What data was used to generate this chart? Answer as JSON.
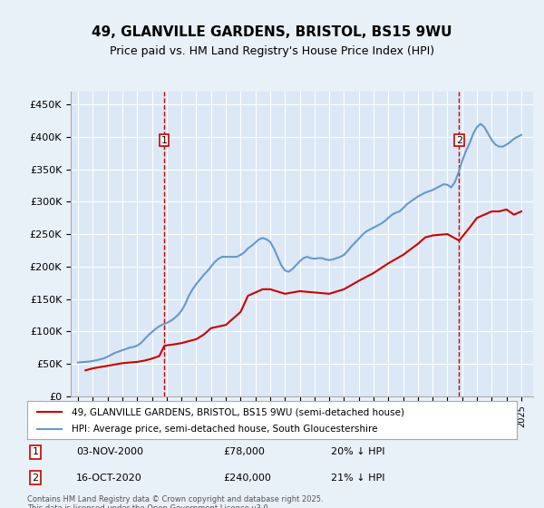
{
  "title": "49, GLANVILLE GARDENS, BRISTOL, BS15 9WU",
  "subtitle": "Price paid vs. HM Land Registry's House Price Index (HPI)",
  "background_color": "#e8f0f8",
  "plot_bg_color": "#dce8f5",
  "legend_label_red": "49, GLANVILLE GARDENS, BRISTOL, BS15 9WU (semi-detached house)",
  "legend_label_blue": "HPI: Average price, semi-detached house, South Gloucestershire",
  "footer": "Contains HM Land Registry data © Crown copyright and database right 2025.\nThis data is licensed under the Open Government Licence v3.0.",
  "annotation1": {
    "label": "1",
    "date_str": "03-NOV-2000",
    "price_str": "£78,000",
    "note": "20% ↓ HPI",
    "x_year": 2000.84
  },
  "annotation2": {
    "label": "2",
    "date_str": "16-OCT-2020",
    "price_str": "£240,000",
    "note": "21% ↓ HPI",
    "x_year": 2020.79
  },
  "ylim": [
    0,
    470000
  ],
  "xlim_left": 1994.5,
  "xlim_right": 2025.8,
  "yticks": [
    0,
    50000,
    100000,
    150000,
    200000,
    250000,
    300000,
    350000,
    400000,
    450000
  ],
  "xticks": [
    1995,
    1996,
    1997,
    1998,
    1999,
    2000,
    2001,
    2002,
    2003,
    2004,
    2005,
    2006,
    2007,
    2008,
    2009,
    2010,
    2011,
    2012,
    2013,
    2014,
    2015,
    2016,
    2017,
    2018,
    2019,
    2020,
    2021,
    2022,
    2023,
    2024,
    2025
  ],
  "red_color": "#cc0000",
  "blue_color": "#6699cc",
  "dashed_color": "#cc0000",
  "hpi_data": {
    "years": [
      1995.0,
      1995.25,
      1995.5,
      1995.75,
      1996.0,
      1996.25,
      1996.5,
      1996.75,
      1997.0,
      1997.25,
      1997.5,
      1997.75,
      1998.0,
      1998.25,
      1998.5,
      1998.75,
      1999.0,
      1999.25,
      1999.5,
      1999.75,
      2000.0,
      2000.25,
      2000.5,
      2000.75,
      2001.0,
      2001.25,
      2001.5,
      2001.75,
      2002.0,
      2002.25,
      2002.5,
      2002.75,
      2003.0,
      2003.25,
      2003.5,
      2003.75,
      2004.0,
      2004.25,
      2004.5,
      2004.75,
      2005.0,
      2005.25,
      2005.5,
      2005.75,
      2006.0,
      2006.25,
      2006.5,
      2006.75,
      2007.0,
      2007.25,
      2007.5,
      2007.75,
      2008.0,
      2008.25,
      2008.5,
      2008.75,
      2009.0,
      2009.25,
      2009.5,
      2009.75,
      2010.0,
      2010.25,
      2010.5,
      2010.75,
      2011.0,
      2011.25,
      2011.5,
      2011.75,
      2012.0,
      2012.25,
      2012.5,
      2012.75,
      2013.0,
      2013.25,
      2013.5,
      2013.75,
      2014.0,
      2014.25,
      2014.5,
      2014.75,
      2015.0,
      2015.25,
      2015.5,
      2015.75,
      2016.0,
      2016.25,
      2016.5,
      2016.75,
      2017.0,
      2017.25,
      2017.5,
      2017.75,
      2018.0,
      2018.25,
      2018.5,
      2018.75,
      2019.0,
      2019.25,
      2019.5,
      2019.75,
      2020.0,
      2020.25,
      2020.5,
      2020.75,
      2021.0,
      2021.25,
      2021.5,
      2021.75,
      2022.0,
      2022.25,
      2022.5,
      2022.75,
      2023.0,
      2023.25,
      2023.5,
      2023.75,
      2024.0,
      2024.25,
      2024.5,
      2024.75,
      2025.0
    ],
    "values": [
      52000,
      52500,
      53000,
      53500,
      54500,
      55500,
      57000,
      58500,
      61000,
      64000,
      67000,
      69000,
      71000,
      73000,
      75000,
      76000,
      78000,
      82000,
      88000,
      94000,
      99000,
      104000,
      108000,
      111000,
      113000,
      116000,
      120000,
      125000,
      132000,
      142000,
      155000,
      165000,
      173000,
      180000,
      187000,
      193000,
      200000,
      207000,
      212000,
      215000,
      215000,
      215000,
      215000,
      215000,
      218000,
      222000,
      228000,
      232000,
      237000,
      242000,
      244000,
      242000,
      238000,
      228000,
      215000,
      202000,
      194000,
      192000,
      196000,
      202000,
      208000,
      213000,
      215000,
      213000,
      212000,
      213000,
      213000,
      211000,
      210000,
      211000,
      213000,
      215000,
      218000,
      224000,
      231000,
      237000,
      243000,
      249000,
      254000,
      257000,
      260000,
      263000,
      266000,
      270000,
      275000,
      280000,
      283000,
      285000,
      290000,
      296000,
      300000,
      304000,
      308000,
      311000,
      314000,
      316000,
      318000,
      321000,
      324000,
      327000,
      326000,
      322000,
      330000,
      345000,
      363000,
      378000,
      390000,
      405000,
      415000,
      420000,
      415000,
      405000,
      395000,
      388000,
      385000,
      385000,
      388000,
      392000,
      397000,
      400000,
      403000
    ]
  },
  "price_paid_data": {
    "years": [
      1995.5,
      1996.0,
      1996.5,
      1997.0,
      1997.5,
      1998.0,
      1999.0,
      1999.5,
      2000.0,
      2000.5,
      2000.84,
      2001.5,
      2002.0,
      2003.0,
      2003.5,
      2004.0,
      2005.0,
      2006.0,
      2006.5,
      2007.5,
      2008.0,
      2009.0,
      2010.0,
      2011.0,
      2012.0,
      2013.0,
      2014.0,
      2015.0,
      2016.0,
      2017.0,
      2018.0,
      2018.5,
      2019.0,
      2020.0,
      2020.79,
      2021.5,
      2022.0,
      2022.5,
      2023.0,
      2023.5,
      2024.0,
      2024.5,
      2025.0
    ],
    "values": [
      40000,
      43000,
      45000,
      47000,
      49000,
      51000,
      53000,
      55000,
      58000,
      62000,
      78000,
      80000,
      82000,
      88000,
      95000,
      105000,
      110000,
      130000,
      155000,
      165000,
      165000,
      158000,
      162000,
      160000,
      158000,
      165000,
      178000,
      190000,
      205000,
      218000,
      235000,
      245000,
      248000,
      250000,
      240000,
      260000,
      275000,
      280000,
      285000,
      285000,
      288000,
      280000,
      285000
    ]
  }
}
